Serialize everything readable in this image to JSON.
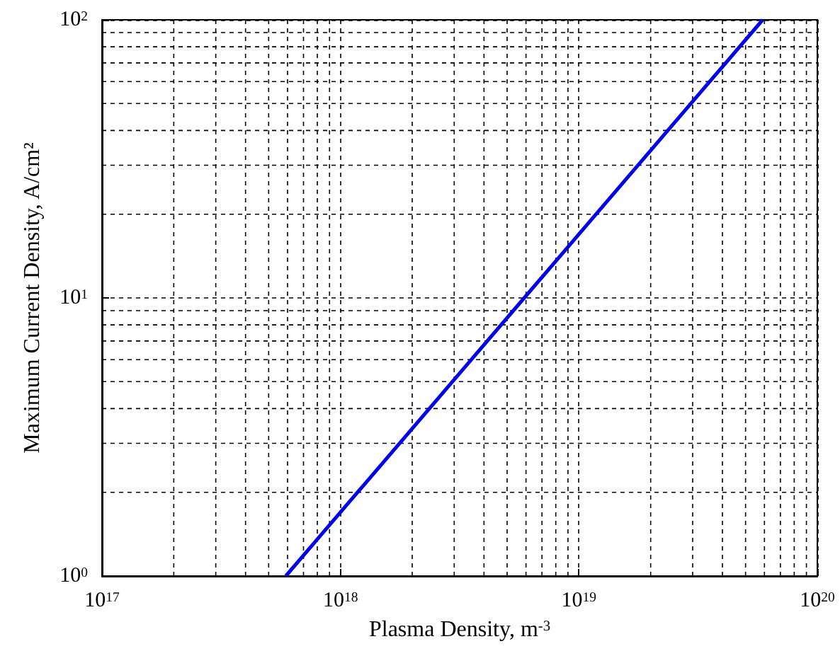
{
  "chart_data": {
    "type": "line",
    "xlabel": "Plasma Density, m$^{-3}$",
    "ylabel": "Maximum Current Density, A/cm²",
    "series": [
      {
        "color": "#0000ee",
        "x": [
          5.9e+17,
          5.9e+18,
          5.9e+19
        ],
        "values": [
          1,
          10,
          100
        ]
      }
    ],
    "log": "xy",
    "grid": true,
    "marker": "none",
    "line_style": "solid",
    "xlim": [
      1e+17,
      1e+20
    ],
    "xticks": [
      {
        "value": 1e+17,
        "label": "10$^{17}$"
      },
      {
        "value": 1e+18,
        "label": "10$^{18}$"
      },
      {
        "value": 1e+19,
        "label": "10$^{19}$"
      },
      {
        "value": 1e+20,
        "label": "10$^{20}$"
      }
    ],
    "ylim": [
      1,
      100
    ],
    "yticks": [
      {
        "value": 1,
        "label": "10$^{0}$"
      },
      {
        "value": 10,
        "label": "10$^{1}$"
      },
      {
        "value": 100,
        "label": "10$^{2}$"
      }
    ]
  }
}
